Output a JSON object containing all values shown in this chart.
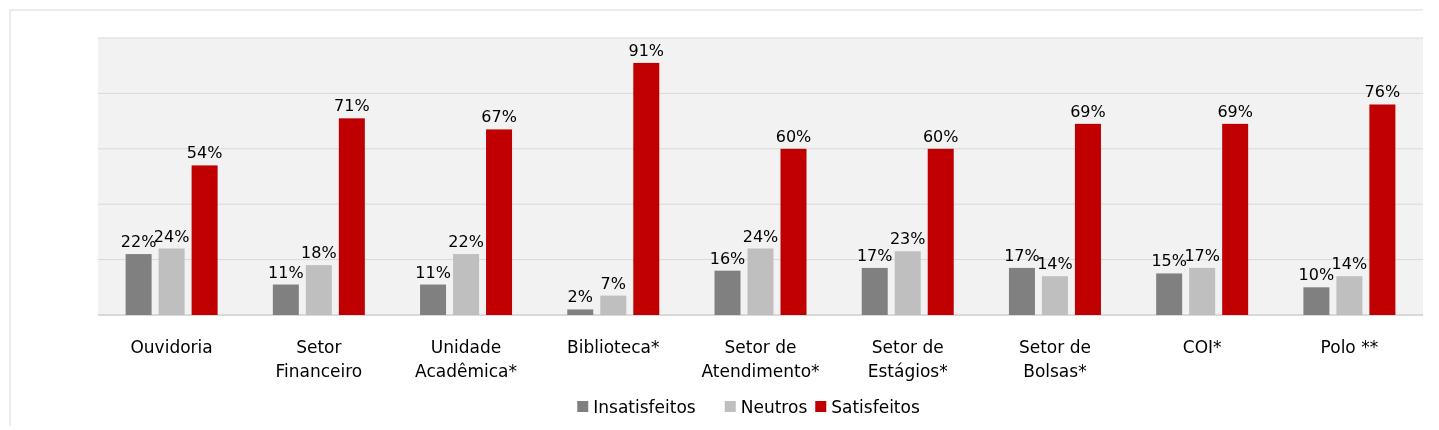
{
  "chart_data": {
    "type": "bar",
    "categories": [
      "Ouvidoria",
      "Setor Financeiro",
      "Unidade Acadêmica*",
      "Biblioteca*",
      "Setor de Atendimento*",
      "Setor de Estágios*",
      "Setor de Bolsas*",
      "COI*",
      "Polo **"
    ],
    "series": [
      {
        "name": "Insatisfeitos",
        "color": "#808080",
        "values": [
          22,
          11,
          11,
          2,
          16,
          17,
          17,
          15,
          10
        ],
        "value_labels": [
          "22%",
          "11%",
          "11%",
          "2%",
          "16%",
          "17%",
          "17%",
          "15%",
          "10%"
        ]
      },
      {
        "name": "Neutros",
        "color": "#bfbfbf",
        "values": [
          24,
          18,
          22,
          7,
          24,
          23,
          14,
          17,
          14
        ],
        "value_labels": [
          "24%",
          "18%",
          "22%",
          "7%",
          "24%",
          "23%",
          "14%",
          "17%",
          "14%"
        ]
      },
      {
        "name": "Satisfeitos",
        "color": "#c00000",
        "values": [
          54,
          71,
          67,
          91,
          60,
          60,
          69,
          69,
          76
        ],
        "value_labels": [
          "54%",
          "71%",
          "67%",
          "91%",
          "60%",
          "60%",
          "69%",
          "69%",
          "76%"
        ]
      }
    ],
    "ylim": [
      0,
      100
    ],
    "yticks": [
      {
        "value": 0,
        "label": null
      },
      {
        "value": 20,
        "label": null
      },
      {
        "value": 40,
        "label": null
      },
      {
        "value": 60,
        "label": null
      },
      {
        "value": 80,
        "label": null
      },
      {
        "value": 100,
        "label": null
      }
    ],
    "tick_labels": "x",
    "grid": "y",
    "legend": "bottom"
  }
}
